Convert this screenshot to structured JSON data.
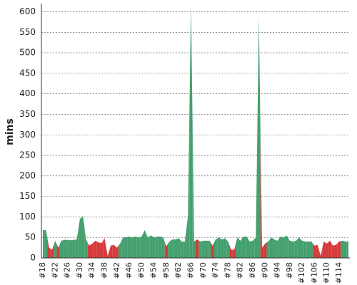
{
  "chart_data": {
    "type": "area",
    "y_label": "mins",
    "categories": [
      "#18",
      null,
      null,
      null,
      "#22",
      null,
      null,
      null,
      "#26",
      null,
      null,
      null,
      "#30",
      null,
      null,
      null,
      "#34",
      null,
      null,
      null,
      "#38",
      null,
      null,
      null,
      "#42",
      null,
      null,
      null,
      "#46",
      null,
      null,
      null,
      "#50",
      null,
      null,
      null,
      "#54",
      null,
      null,
      null,
      "#58",
      null,
      null,
      null,
      "#62",
      null,
      null,
      null,
      "#66",
      null,
      null,
      null,
      "#70",
      null,
      null,
      null,
      "#74",
      null,
      null,
      null,
      "#78",
      null,
      null,
      null,
      "#82",
      null,
      null,
      null,
      "#86",
      null,
      null,
      null,
      "#90",
      null,
      null,
      null,
      "#94",
      null,
      null,
      null,
      "#98",
      null,
      null,
      null,
      "#102",
      null,
      null,
      null,
      "#106",
      null,
      null,
      null,
      "#110",
      null,
      null,
      null,
      "#114",
      null,
      null,
      null
    ],
    "values": [
      68,
      68,
      25,
      20,
      42,
      25,
      42,
      44,
      44,
      43,
      44,
      45,
      95,
      102,
      45,
      30,
      35,
      42,
      38,
      36,
      48,
      5,
      30,
      32,
      25,
      35,
      50,
      50,
      52,
      50,
      52,
      50,
      52,
      68,
      50,
      55,
      50,
      52,
      52,
      50,
      28,
      40,
      45,
      45,
      48,
      40,
      40,
      100,
      620,
      40,
      45,
      40,
      42,
      42,
      42,
      30,
      45,
      50,
      45,
      48,
      40,
      20,
      20,
      50,
      42,
      52,
      52,
      40,
      42,
      50,
      585,
      25,
      35,
      40,
      50,
      45,
      42,
      52,
      50,
      55,
      42,
      40,
      42,
      50,
      42,
      40,
      40,
      40,
      30,
      32,
      5,
      40,
      35,
      42,
      30,
      32,
      40,
      42,
      40,
      40
    ],
    "colors": [
      "#45a06f",
      "#45a06f",
      "#d63b3b",
      "#d63b3b",
      "#45a06f",
      "#d63b3b",
      "#45a06f",
      "#45a06f",
      "#45a06f",
      "#45a06f",
      "#45a06f",
      "#45a06f",
      "#45a06f",
      "#45a06f",
      "#45a06f",
      "#d63b3b",
      "#d63b3b",
      "#d63b3b",
      "#d63b3b",
      "#d63b3b",
      "#d63b3b",
      "#d63b3b",
      "#d63b3b",
      "#d63b3b",
      "#d63b3b",
      "#45a06f",
      "#45a06f",
      "#45a06f",
      "#45a06f",
      "#45a06f",
      "#45a06f",
      "#45a06f",
      "#45a06f",
      "#45a06f",
      "#45a06f",
      "#45a06f",
      "#45a06f",
      "#45a06f",
      "#45a06f",
      "#45a06f",
      "#d63b3b",
      "#45a06f",
      "#45a06f",
      "#45a06f",
      "#45a06f",
      "#45a06f",
      "#45a06f",
      "#45a06f",
      "#45a06f",
      "#45a06f",
      "#d63b3b",
      "#45a06f",
      "#45a06f",
      "#45a06f",
      "#45a06f",
      "#d63b3b",
      "#45a06f",
      "#45a06f",
      "#45a06f",
      "#45a06f",
      "#45a06f",
      "#d63b3b",
      "#d63b3b",
      "#45a06f",
      "#45a06f",
      "#45a06f",
      "#45a06f",
      "#45a06f",
      "#45a06f",
      "#45a06f",
      "#45a06f",
      "#d63b3b",
      "#d63b3b",
      "#45a06f",
      "#45a06f",
      "#45a06f",
      "#45a06f",
      "#45a06f",
      "#45a06f",
      "#45a06f",
      "#45a06f",
      "#45a06f",
      "#45a06f",
      "#45a06f",
      "#45a06f",
      "#45a06f",
      "#45a06f",
      "#45a06f",
      "#d63b3b",
      "#d63b3b",
      "#d63b3b",
      "#d63b3b",
      "#d63b3b",
      "#d63b3b",
      "#d63b3b",
      "#d63b3b",
      "#d63b3b",
      "#45a06f",
      "#45a06f",
      "#45a06f"
    ],
    "ylim": [
      0,
      620
    ],
    "yticks": [
      0,
      50,
      100,
      150,
      200,
      250,
      300,
      350,
      400,
      450,
      500,
      550,
      600
    ],
    "grid": true
  }
}
